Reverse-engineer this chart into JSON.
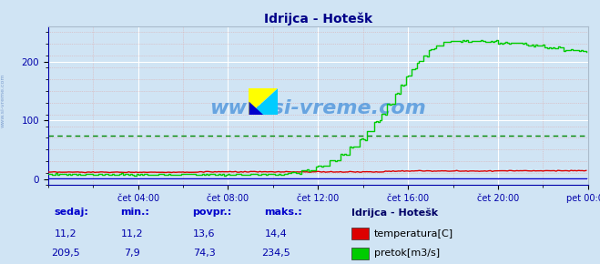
{
  "title": "Idrijca - Hotešk",
  "bg_color": "#d0e4f4",
  "plot_bg_color": "#d0e4f4",
  "y_min": -10,
  "y_max": 260,
  "y_ticks": [
    0,
    100,
    200
  ],
  "avg_line_value": 74.3,
  "x_tick_labels": [
    "čet 04:00",
    "čet 08:00",
    "čet 12:00",
    "čet 16:00",
    "čet 20:00",
    "pet 00:00"
  ],
  "x_tick_positions": [
    48,
    96,
    144,
    192,
    240,
    288
  ],
  "temp_color": "#dd0000",
  "flow_color": "#00cc00",
  "height_color": "#0000cc",
  "avg_color": "#008800",
  "watermark_text": "www.si-vreme.com",
  "watermark_color": "#5599dd",
  "title_color": "#000088",
  "axis_color": "#0000aa",
  "tick_color": "#0000aa",
  "legend_title": "Idrijca - Hotešk",
  "legend_items": [
    "temperatura[C]",
    "pretok[m3/s]"
  ],
  "legend_colors": [
    "#dd0000",
    "#00cc00"
  ],
  "table_headers": [
    "sedaj:",
    "min.:",
    "povpr.:",
    "maks.:"
  ],
  "table_data": [
    [
      "11,2",
      "11,2",
      "13,6",
      "14,4"
    ],
    [
      "209,5",
      "7,9",
      "74,3",
      "234,5"
    ]
  ],
  "total_points": 288
}
